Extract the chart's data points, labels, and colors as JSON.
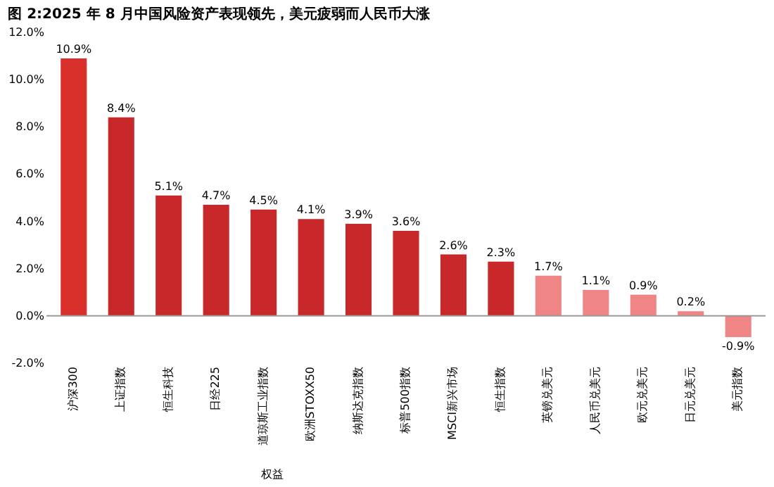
{
  "chart_data": {
    "type": "bar",
    "title": "图 2:2025 年 8 月中国风险资产表现领先，美元疲弱而人民币大涨",
    "xlabel": "权益",
    "categories": [
      "沪深300",
      "上证指数",
      "恒生科技",
      "日经225",
      "道琼斯工业指数",
      "欧洲STOXX50",
      "纳斯达克指数",
      "标普500指数",
      "MSCI新兴市场",
      "恒生指数",
      "英镑兑美元",
      "人民币兑美元",
      "欧元兑美元",
      "日元兑美元",
      "美元指数"
    ],
    "values": [
      10.9,
      8.4,
      5.1,
      4.7,
      4.5,
      4.1,
      3.9,
      3.6,
      2.6,
      2.3,
      1.7,
      1.1,
      0.9,
      0.2,
      -0.9
    ],
    "value_labels": [
      "10.9%",
      "8.4%",
      "5.1%",
      "4.7%",
      "4.5%",
      "4.1%",
      "3.9%",
      "3.6%",
      "2.6%",
      "2.3%",
      "1.7%",
      "1.1%",
      "0.9%",
      "0.2%",
      "-0.9%"
    ],
    "colors": [
      "#d9302c",
      "#c8282a",
      "#c8282a",
      "#c8282a",
      "#c8282a",
      "#c8282a",
      "#c8282a",
      "#c8282a",
      "#c8282a",
      "#c8282a",
      "#ef8585",
      "#ef8585",
      "#ef8585",
      "#ef8585",
      "#ef8585"
    ],
    "ylim": [
      -2,
      12
    ],
    "yticks": [
      {
        "value": -2,
        "label": "-2.0%"
      },
      {
        "value": 0,
        "label": "0.0%"
      },
      {
        "value": 2,
        "label": "2.0%"
      },
      {
        "value": 4,
        "label": "4.0%"
      },
      {
        "value": 6,
        "label": "6.0%"
      },
      {
        "value": 8,
        "label": "8.0%"
      },
      {
        "value": 10,
        "label": "10.0%"
      },
      {
        "value": 12,
        "label": "12.0%"
      }
    ],
    "ref_lines": [
      {
        "axis": "y",
        "value": 0,
        "color": "#999999"
      }
    ],
    "grid": false
  }
}
